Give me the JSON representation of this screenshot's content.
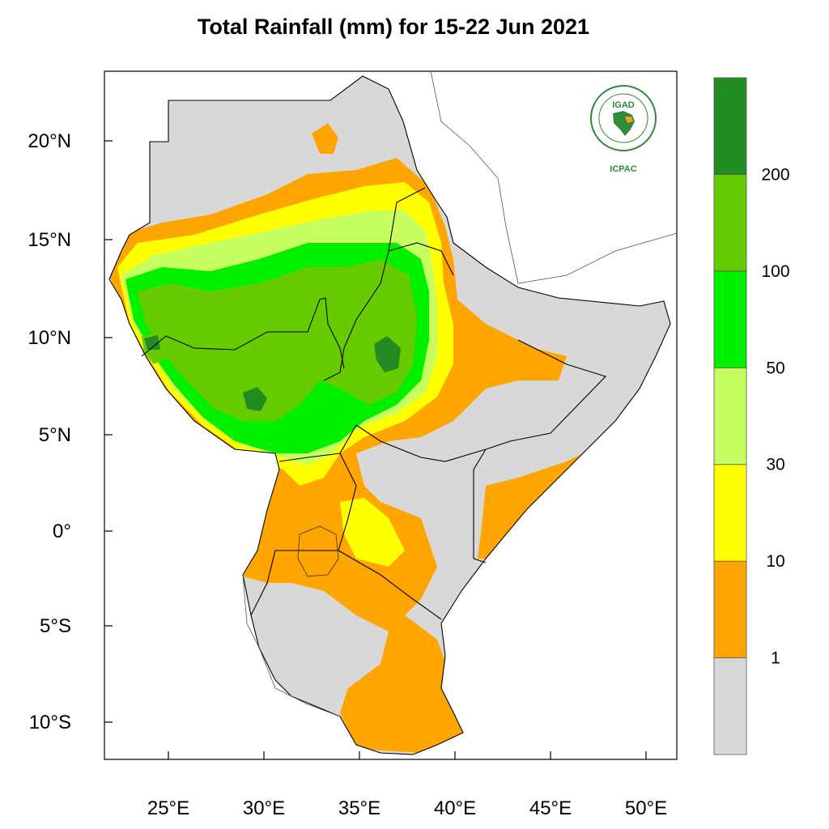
{
  "title": "Total Rainfall (mm) for 15-22 Jun 2021",
  "logo": {
    "badge": "IGAD",
    "name": "ICPAC"
  },
  "map": {
    "extent": {
      "lon": [
        21.8,
        51.6
      ],
      "lat": [
        -11.9,
        23.7
      ]
    },
    "lon_ticks": [
      {
        "value": 25,
        "label": "25°E"
      },
      {
        "value": 30,
        "label": "30°E"
      },
      {
        "value": 35,
        "label": "35°E"
      },
      {
        "value": 40,
        "label": "40°E"
      },
      {
        "value": 45,
        "label": "45°E"
      },
      {
        "value": 50,
        "label": "50°E"
      }
    ],
    "lat_ticks": [
      {
        "value": 20,
        "label": "20°N"
      },
      {
        "value": 15,
        "label": "15°N"
      },
      {
        "value": 10,
        "label": "10°N"
      },
      {
        "value": 5,
        "label": "5°N"
      },
      {
        "value": 0,
        "label": "0°"
      },
      {
        "value": -5,
        "label": "5°S"
      },
      {
        "value": -10,
        "label": "10°S"
      }
    ]
  },
  "colorbar": {
    "bins": [
      {
        "color": "#d8d8d8"
      },
      {
        "color": "#ffa500"
      },
      {
        "color": "#ffff00"
      },
      {
        "color": "#c8ff60"
      },
      {
        "color": "#00f000"
      },
      {
        "color": "#66cc00"
      },
      {
        "color": "#228b22"
      }
    ],
    "labels": [
      "1",
      "10",
      "30",
      "50",
      "100",
      "200"
    ]
  }
}
